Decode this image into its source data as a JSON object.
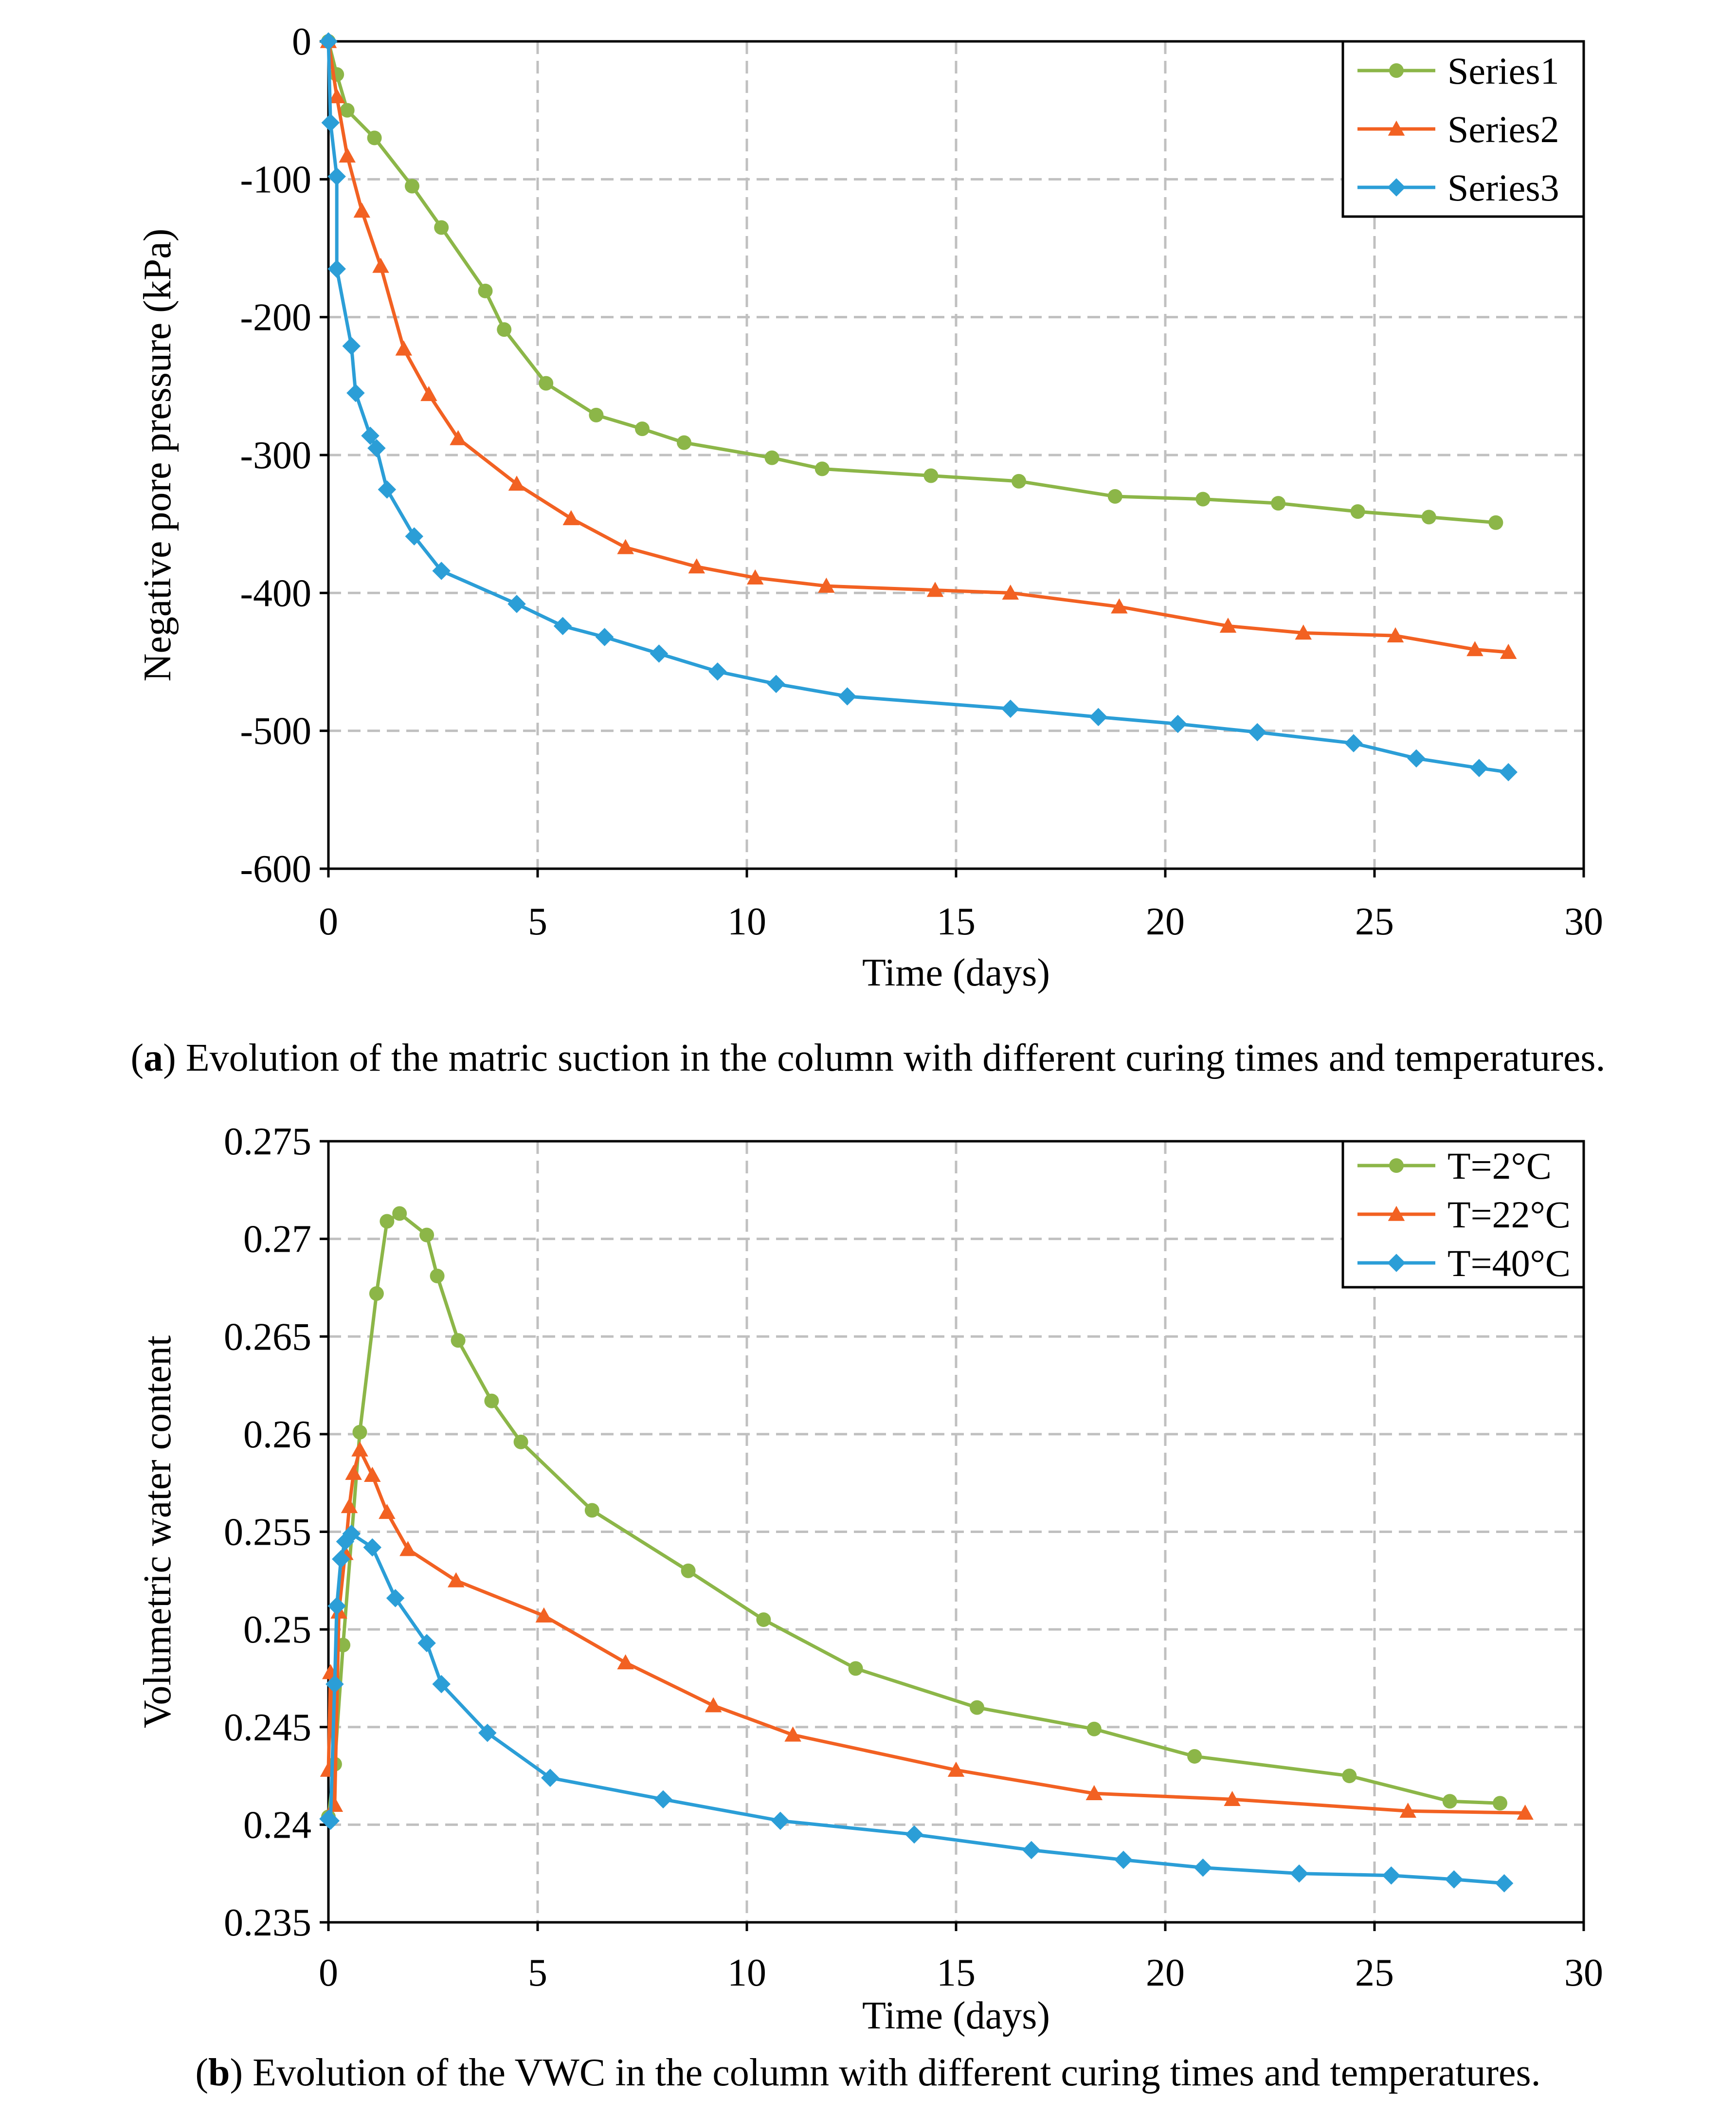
{
  "chart_data": [
    {
      "type": "line",
      "xlabel": "Time (days)",
      "ylabel": "Negative pore pressure (kPa)",
      "xlim": [
        0,
        30
      ],
      "ylim": [
        -600,
        0
      ],
      "xticks": [
        0,
        5,
        10,
        15,
        20,
        25,
        30
      ],
      "yticks": [
        0,
        -100,
        -200,
        -300,
        -400,
        -500,
        -600
      ],
      "xtick_labels": [
        "0",
        "5",
        "10",
        "15",
        "20",
        "25",
        "30"
      ],
      "ytick_labels": [
        "0",
        "-100",
        "-200",
        "-300",
        "-400",
        "-500",
        "-600"
      ],
      "grid": true,
      "legend_position": "top-right",
      "caption_bold": "a",
      "caption": " Evolution of the matric suction in the column with different curing times and temperatures.",
      "series": [
        {
          "name": "Series1",
          "color": "#8cb648",
          "marker": "circle",
          "x": [
            0,
            0.2,
            0.45,
            1.1,
            2.0,
            2.7,
            3.75,
            4.2,
            5.2,
            6.4,
            7.5,
            8.5,
            10.6,
            11.8,
            14.4,
            16.5,
            18.8,
            20.9,
            22.7,
            24.6,
            26.3,
            27.9
          ],
          "y": [
            0,
            -24,
            -50,
            -70,
            -105,
            -135,
            -181,
            -209,
            -248,
            -271,
            -281,
            -291,
            -302,
            -310,
            -315,
            -319,
            -330,
            -332,
            -335,
            -341,
            -345,
            -349
          ]
        },
        {
          "name": "Series2",
          "color": "#f26122",
          "marker": "triangle",
          "x": [
            0,
            0.2,
            0.45,
            0.8,
            1.25,
            1.8,
            2.4,
            3.1,
            4.5,
            5.8,
            7.1,
            8.8,
            10.2,
            11.9,
            14.5,
            16.3,
            18.9,
            21.5,
            23.3,
            25.5,
            27.4,
            28.2
          ],
          "y": [
            0,
            -40,
            -83,
            -123,
            -163,
            -223,
            -256,
            -288,
            -321,
            -346,
            -367,
            -381,
            -389,
            -395,
            -398,
            -400,
            -410,
            -424,
            -429,
            -431,
            -441,
            -443
          ]
        },
        {
          "name": "Series3",
          "color": "#2b9ed7",
          "marker": "diamond",
          "x": [
            0,
            0.05,
            0.2,
            0.2,
            0.55,
            0.65,
            1.0,
            1.15,
            1.4,
            2.05,
            2.7,
            4.5,
            5.6,
            6.6,
            7.9,
            9.3,
            10.7,
            12.4,
            16.3,
            18.4,
            20.3,
            22.2,
            24.5,
            26.0,
            27.5,
            28.2
          ],
          "y": [
            0,
            -59,
            -98,
            -165,
            -221,
            -255,
            -286,
            -295,
            -325,
            -359,
            -384,
            -408,
            -424,
            -432,
            -444,
            -457,
            -466,
            -475,
            -484,
            -490,
            -495,
            -501,
            -509,
            -520,
            -527,
            -530
          ]
        }
      ]
    },
    {
      "type": "line",
      "xlabel": "Time (days)",
      "ylabel": "Volumetric water content",
      "xlim": [
        0,
        30
      ],
      "ylim": [
        0.235,
        0.275
      ],
      "xticks": [
        0,
        5,
        10,
        15,
        20,
        25,
        30
      ],
      "yticks": [
        0.235,
        0.24,
        0.245,
        0.25,
        0.255,
        0.26,
        0.265,
        0.27,
        0.275
      ],
      "xtick_labels": [
        "0",
        "5",
        "10",
        "15",
        "20",
        "25",
        "30"
      ],
      "ytick_labels": [
        "0.235",
        "0.24",
        "0.245",
        "0.25",
        "0.255",
        "0.26",
        "0.265",
        "0.27",
        "0.275"
      ],
      "grid": true,
      "legend_position": "top-right",
      "caption_bold": "b",
      "caption": " Evolution of the VWC in the column with different curing times and temperatures.",
      "series": [
        {
          "name": "T=2°C",
          "color": "#8cb648",
          "marker": "circle",
          "x": [
            0,
            0.15,
            0.35,
            0.75,
            1.15,
            1.4,
            1.7,
            2.35,
            2.6,
            3.1,
            3.9,
            4.6,
            6.3,
            8.6,
            10.4,
            12.6,
            15.5,
            18.3,
            20.7,
            24.4,
            26.8,
            28.0
          ],
          "y": [
            0.2404,
            0.2431,
            0.2492,
            0.2601,
            0.2672,
            0.2709,
            0.2713,
            0.2702,
            0.2681,
            0.2648,
            0.2617,
            0.2596,
            0.2561,
            0.253,
            0.2505,
            0.248,
            0.246,
            0.2449,
            0.2435,
            0.2425,
            0.2412,
            0.2411
          ]
        },
        {
          "name": "T=22°C",
          "color": "#f26122",
          "marker": "triangle",
          "x": [
            0,
            0.05,
            0.15,
            0.25,
            0.4,
            0.5,
            0.6,
            0.75,
            1.05,
            1.4,
            1.9,
            3.05,
            5.15,
            7.1,
            9.2,
            11.1,
            15.0,
            18.3,
            21.6,
            25.8,
            28.6
          ],
          "y": [
            0.2428,
            0.2478,
            0.241,
            0.2509,
            0.2539,
            0.2563,
            0.258,
            0.2592,
            0.2579,
            0.256,
            0.2541,
            0.2525,
            0.2507,
            0.2483,
            0.2461,
            0.2446,
            0.2428,
            0.2416,
            0.2413,
            0.2407,
            0.2406
          ]
        },
        {
          "name": "T=40°C",
          "color": "#2b9ed7",
          "marker": "diamond",
          "x": [
            0,
            0.05,
            0.15,
            0.2,
            0.3,
            0.4,
            0.55,
            1.05,
            1.6,
            2.35,
            2.7,
            3.8,
            5.3,
            8.0,
            10.8,
            14.0,
            16.8,
            19.0,
            20.9,
            23.2,
            25.4,
            26.9,
            28.1
          ],
          "y": [
            0.2403,
            0.2402,
            0.2472,
            0.2512,
            0.2536,
            0.2545,
            0.2549,
            0.2542,
            0.2516,
            0.2493,
            0.2472,
            0.2447,
            0.2424,
            0.2413,
            0.2402,
            0.2395,
            0.2387,
            0.2382,
            0.2378,
            0.2375,
            0.2374,
            0.2372,
            0.237
          ]
        }
      ]
    }
  ]
}
